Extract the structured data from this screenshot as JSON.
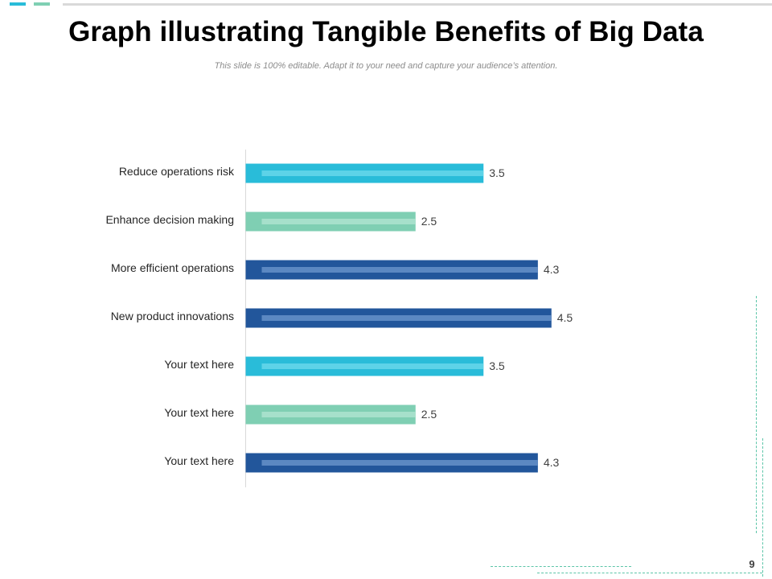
{
  "slide": {
    "title": "Graph illustrating Tangible Benefits of Big Data",
    "subtitle": "This slide is 100% editable. Adapt it to your need and capture your audience’s attention.",
    "page_number": "9"
  },
  "colors": {
    "cyan": "#29bcd9",
    "cyan_inner": "#5dd3e8",
    "mint": "#7fcfb3",
    "mint_inner": "#a6e0cb",
    "navy": "#22569b",
    "navy_inner": "#5b88c2",
    "accent": "#5cc5a8",
    "axis": "#d9d9d9"
  },
  "chart_data": {
    "type": "bar",
    "orientation": "horizontal",
    "categories": [
      "Reduce operations risk",
      "Enhance decision making",
      "More efficient operations",
      "New product innovations",
      "Your text here",
      "Your text here",
      "Your text here"
    ],
    "values": [
      3.5,
      2.5,
      4.3,
      4.5,
      3.5,
      2.5,
      4.3
    ],
    "value_labels": [
      "3.5",
      "2.5",
      "4.3",
      "4.5",
      "3.5",
      "2.5",
      "4.3"
    ],
    "bar_colors": [
      "cyan",
      "mint",
      "navy",
      "navy",
      "cyan",
      "mint",
      "navy"
    ],
    "xlim": [
      0,
      5
    ],
    "grid": false,
    "legend": "none",
    "title": "Graph illustrating Tangible Benefits of Big Data",
    "xlabel": "",
    "ylabel": ""
  }
}
